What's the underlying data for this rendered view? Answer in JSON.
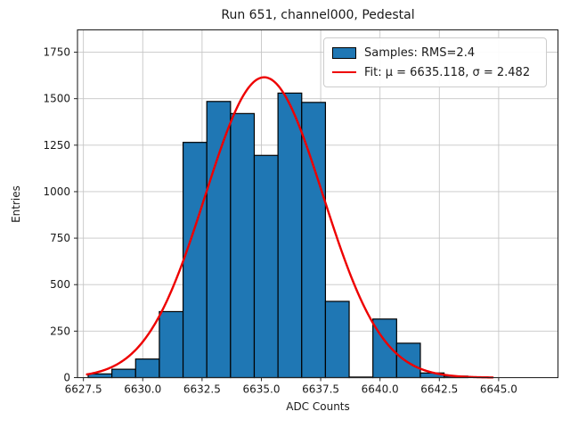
{
  "chart_data": {
    "type": "bar",
    "subtype": "histogram-with-gaussian-fit",
    "title": "Run 651, channel000, Pedestal",
    "xlabel": "ADC Counts",
    "ylabel": "Entries",
    "xlim": [
      6627.25,
      6647.5
    ],
    "ylim": [
      0,
      1870
    ],
    "grid": true,
    "legend_position": "upper right",
    "x_ticks": [
      6627.5,
      6630.0,
      6632.5,
      6635.0,
      6637.5,
      6640.0,
      6642.5,
      6645.0
    ],
    "x_tick_labels": [
      "6627.5",
      "6630.0",
      "6632.5",
      "6635.0",
      "6637.5",
      "6640.0",
      "6642.5",
      "6645.0"
    ],
    "y_ticks": [
      0,
      250,
      500,
      750,
      1000,
      1250,
      1500,
      1750
    ],
    "y_tick_labels": [
      "0",
      "250",
      "500",
      "750",
      "1000",
      "1250",
      "1500",
      "1750"
    ],
    "bins": {
      "start": 6627.7,
      "width": 1.0,
      "counts": [
        20,
        45,
        100,
        355,
        1265,
        1485,
        1420,
        1195,
        1530,
        1480,
        410,
        3,
        315,
        185,
        25,
        8
      ]
    },
    "fit_curve": {
      "shape": "gaussian",
      "amplitude": 1615,
      "mu": 6635.118,
      "sigma": 2.482,
      "x_start": 6627.65,
      "x_end": 6644.75
    },
    "legend": [
      {
        "swatch": "bar",
        "label": "Samples: RMS=2.4"
      },
      {
        "swatch": "line",
        "label": "Fit: μ = 6635.118, σ = 2.482"
      }
    ],
    "colors": {
      "bar_fill": "#1f77b4",
      "bar_edge": "#000000",
      "fit_line": "#ee0000",
      "grid": "#c6c6c6",
      "spine": "#262626",
      "text": "#1a1a1a"
    }
  }
}
